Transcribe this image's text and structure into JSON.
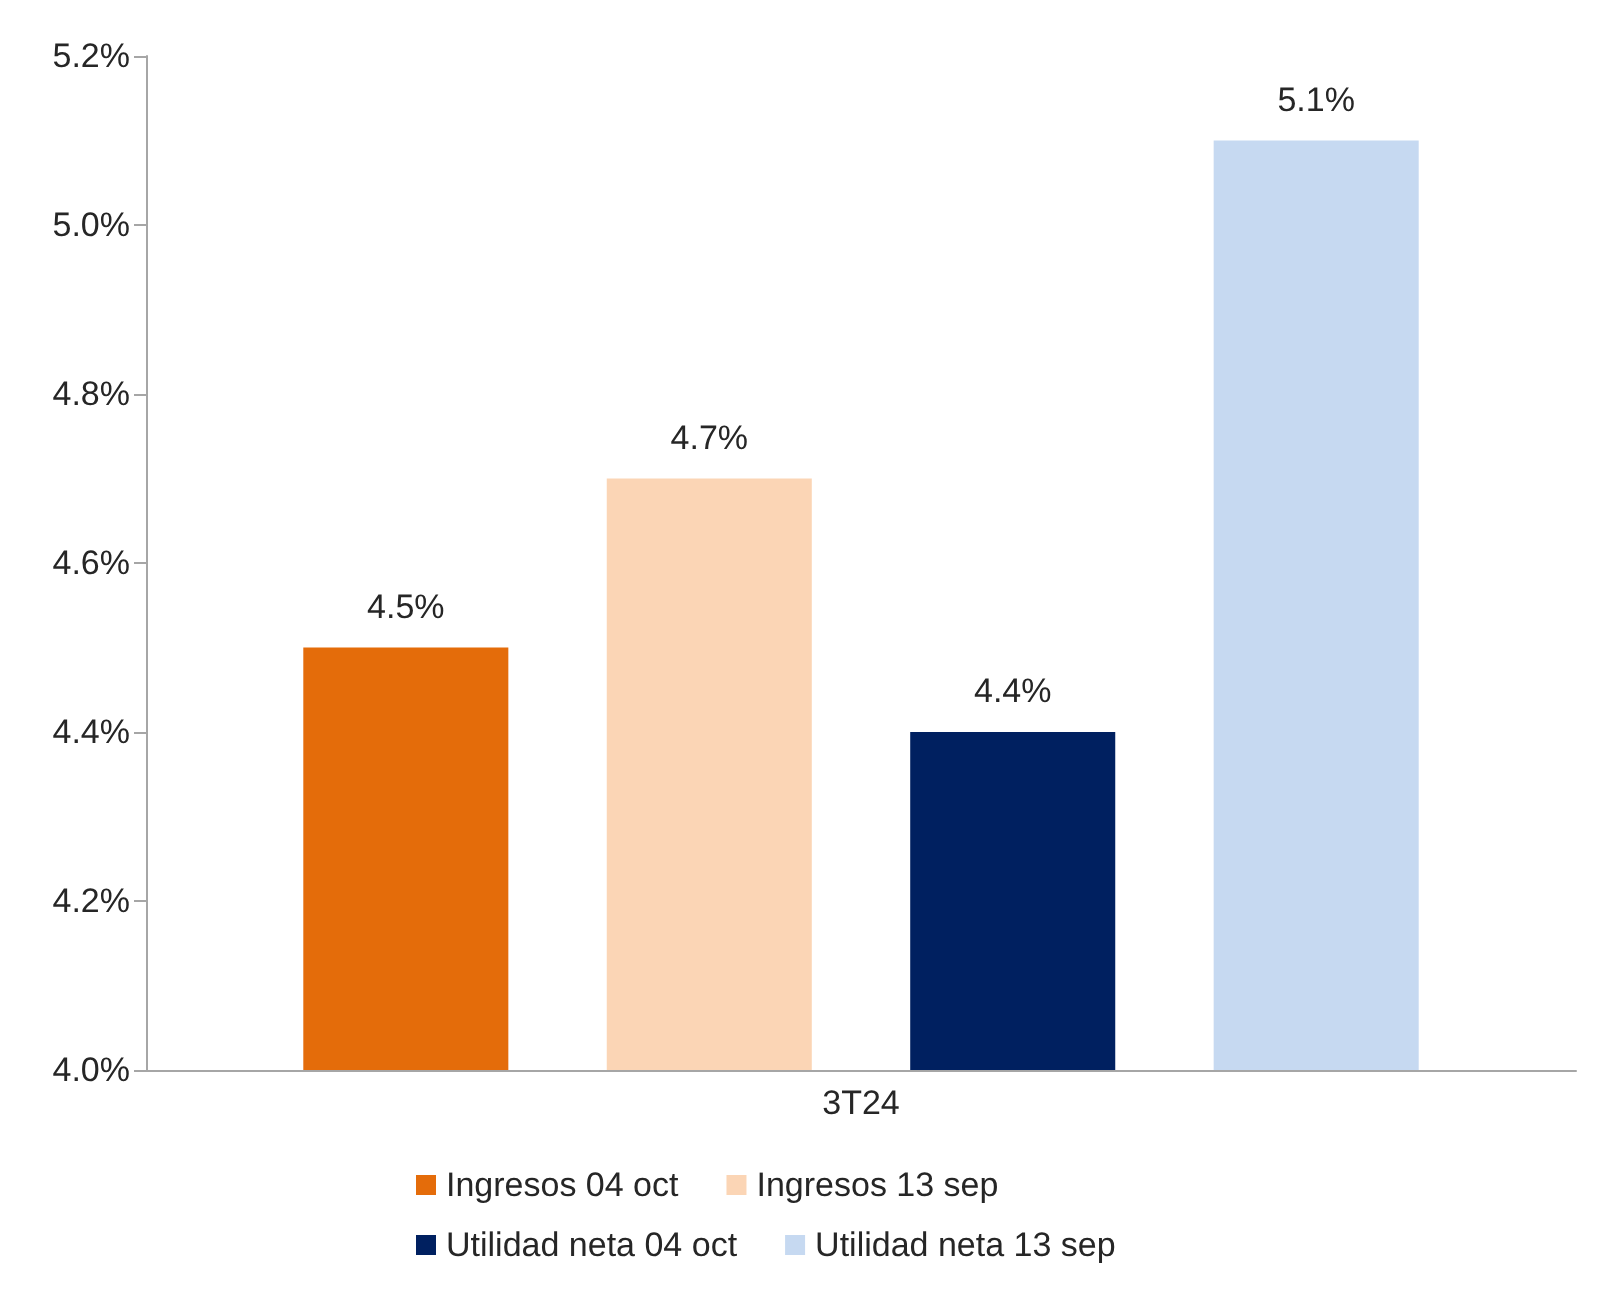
{
  "chart_data": {
    "type": "bar",
    "categories": [
      "3T24"
    ],
    "series": [
      {
        "name": "Ingresos 04 oct",
        "color": "#e46c0a",
        "values": [
          4.5
        ],
        "value_labels": [
          "4.5%"
        ]
      },
      {
        "name": "Ingresos 13 sep",
        "color": "#fbd5b5",
        "values": [
          4.7
        ],
        "value_labels": [
          "4.7%"
        ]
      },
      {
        "name": "Utilidad neta 04 oct",
        "color": "#002060",
        "values": [
          4.4
        ],
        "value_labels": [
          "4.4%"
        ]
      },
      {
        "name": "Utilidad neta 13 sep",
        "color": "#c6d9f1",
        "values": [
          5.1
        ],
        "value_labels": [
          "5.1%"
        ]
      }
    ],
    "ylim": [
      4.0,
      5.2
    ],
    "yticks": [
      {
        "value": 4.0,
        "label": "4.0%"
      },
      {
        "value": 4.2,
        "label": "4.2%"
      },
      {
        "value": 4.4,
        "label": "4.4%"
      },
      {
        "value": 4.6,
        "label": "4.6%"
      },
      {
        "value": 4.8,
        "label": "4.8%"
      },
      {
        "value": 5.0,
        "label": "5.0%"
      },
      {
        "value": 5.2,
        "label": "5.2%"
      }
    ],
    "grid": false,
    "legend": "bottom"
  }
}
